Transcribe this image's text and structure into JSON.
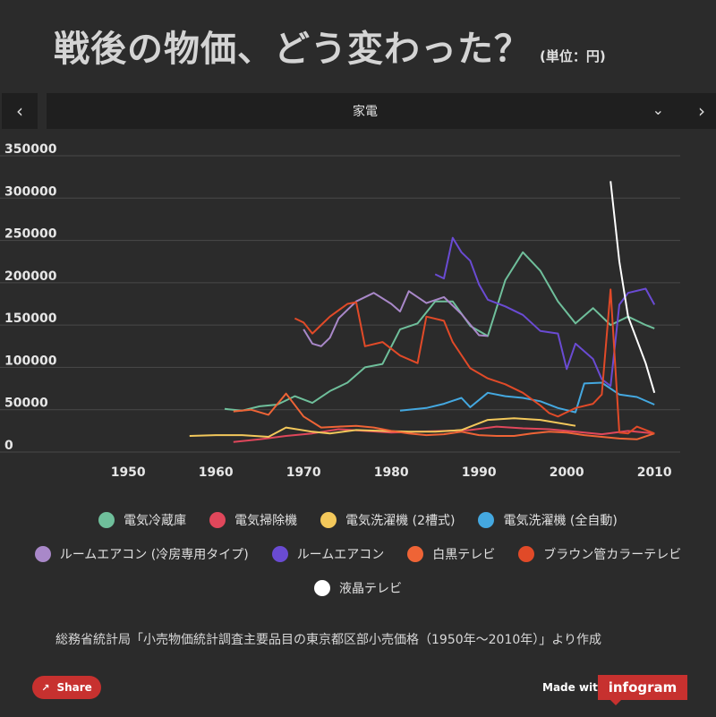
{
  "header": {
    "title": "戦後の物価、どう変わった？",
    "unit": "(単位：円)"
  },
  "nav": {
    "prev_label": "‹",
    "next_label": "›",
    "select_value": "家電",
    "select_chevron": "⌄"
  },
  "chart_data": {
    "type": "line",
    "title": "戦後の物価、どう変わった？",
    "xlabel": "",
    "ylabel": "",
    "xlim": [
      1941,
      2016
    ],
    "ylim": [
      0,
      350000
    ],
    "xticks": [
      1950,
      1960,
      1970,
      1980,
      1990,
      2000,
      2010
    ],
    "yticks": [
      0,
      50000,
      100000,
      150000,
      200000,
      250000,
      300000,
      350000
    ],
    "grid": true,
    "legend_position": "bottom",
    "series": [
      {
        "name": "電気冷蔵庫",
        "color": "#6fbf9b",
        "x": [
          1961,
          1963,
          1965,
          1967,
          1969,
          1971,
          1973,
          1975,
          1977,
          1979,
          1981,
          1983,
          1985,
          1987,
          1989,
          1991,
          1993,
          1995,
          1997,
          1999,
          2001,
          2003,
          2005,
          2007,
          2009,
          2010
        ],
        "y": [
          51000,
          49000,
          54000,
          56000,
          66000,
          58000,
          72000,
          82000,
          100000,
          104000,
          145000,
          152000,
          178000,
          178000,
          149000,
          137000,
          203000,
          236000,
          214000,
          178000,
          152000,
          170000,
          150000,
          160000,
          150000,
          146000
        ]
      },
      {
        "name": "電気掃除機",
        "color": "#e0475b",
        "x": [
          1962,
          1965,
          1968,
          1971,
          1974,
          1977,
          1980,
          1983,
          1986,
          1989,
          1992,
          1995,
          1998,
          2001,
          2004,
          2007,
          2010
        ],
        "y": [
          12000,
          15000,
          19000,
          22000,
          27000,
          25000,
          23000,
          24000,
          25000,
          26000,
          30000,
          28000,
          27000,
          24000,
          21000,
          25000,
          22000
        ]
      },
      {
        "name": "電気洗濯機 (2槽式)",
        "color": "#f3c85b",
        "x": [
          1957,
          1960,
          1963,
          1966,
          1968,
          1971,
          1973,
          1976,
          1979,
          1982,
          1985,
          1988,
          1991,
          1994,
          1997,
          2001
        ],
        "y": [
          19000,
          20000,
          20000,
          18000,
          29000,
          24000,
          22000,
          26000,
          25000,
          24000,
          24000,
          26000,
          38000,
          40000,
          38000,
          31000
        ]
      },
      {
        "name": "電気洗濯機 (全自動)",
        "color": "#44a8e0",
        "x": [
          1981,
          1984,
          1986,
          1988,
          1989,
          1991,
          1993,
          1995,
          1997,
          1999,
          2001,
          2002,
          2004,
          2006,
          2008,
          2010
        ],
        "y": [
          49000,
          52000,
          57000,
          64000,
          53000,
          70000,
          66000,
          64000,
          60000,
          52000,
          47000,
          81000,
          82000,
          68000,
          65000,
          56000
        ]
      },
      {
        "name": "ルームエアコン (冷房専用タイプ)",
        "color": "#a988c9",
        "x": [
          1970,
          1971,
          1972,
          1973,
          1974,
          1976,
          1978,
          1980,
          1981,
          1982,
          1984,
          1986,
          1988,
          1990,
          1991
        ],
        "y": [
          145000,
          128000,
          125000,
          135000,
          158000,
          178000,
          188000,
          175000,
          166000,
          190000,
          176000,
          183000,
          163000,
          138000,
          137000
        ]
      },
      {
        "name": "ルームエアコン",
        "color": "#6a4bd3",
        "x": [
          1985,
          1986,
          1987,
          1988,
          1989,
          1990,
          1991,
          1993,
          1995,
          1997,
          1999,
          2000,
          2001,
          2003,
          2004,
          2005,
          2006,
          2007,
          2009,
          2010
        ],
        "y": [
          210000,
          205000,
          253000,
          236000,
          226000,
          198000,
          180000,
          172000,
          162000,
          143000,
          140000,
          98000,
          128000,
          110000,
          86000,
          78000,
          174000,
          188000,
          193000,
          174000
        ]
      },
      {
        "name": "白黒テレビ",
        "color": "#ef6436",
        "x": [
          1962,
          1964,
          1966,
          1968,
          1970,
          1972,
          1974,
          1976,
          1978,
          1980,
          1982,
          1984,
          1986,
          1988,
          1990,
          1992,
          1994,
          1996,
          1998,
          2000,
          2002,
          2004,
          2006,
          2008,
          2010
        ],
        "y": [
          48000,
          50000,
          44000,
          69000,
          42000,
          29000,
          30000,
          31000,
          29000,
          25000,
          22000,
          20000,
          21000,
          24000,
          20000,
          19000,
          19000,
          22000,
          24000,
          23000,
          20000,
          18000,
          16000,
          15000,
          22000
        ]
      },
      {
        "name": "ブラウン管カラーテレビ",
        "color": "#e14a28",
        "x": [
          1969,
          1970,
          1971,
          1972,
          1973,
          1975,
          1976,
          1977,
          1979,
          1981,
          1983,
          1984,
          1986,
          1987,
          1989,
          1991,
          1993,
          1995,
          1997,
          1998,
          1999,
          2001,
          2003,
          2004,
          2005,
          2006,
          2007,
          2008,
          2010
        ],
        "y": [
          158000,
          153000,
          140000,
          150000,
          160000,
          175000,
          177000,
          125000,
          130000,
          114000,
          105000,
          160000,
          155000,
          130000,
          99000,
          87000,
          80000,
          70000,
          55000,
          46000,
          42000,
          52000,
          57000,
          68000,
          192000,
          23000,
          22000,
          30000,
          22000
        ]
      },
      {
        "name": "液晶テレビ",
        "color": "#ffffff",
        "x": [
          2005,
          2006,
          2007,
          2009,
          2010
        ],
        "y": [
          320000,
          225000,
          160000,
          105000,
          70000
        ]
      }
    ]
  },
  "legend": {
    "rows": [
      [
        0,
        1,
        2,
        3
      ],
      [
        4,
        5,
        6,
        7
      ],
      [
        8
      ]
    ]
  },
  "footer": {
    "source": "総務省統計局「小売物価統計調査主要品目の東京都区部小売価格（1950年～2010年）」より作成",
    "share_label": "Share",
    "share_icon": "↗",
    "made_with": "Made with",
    "brand": "infogram"
  }
}
